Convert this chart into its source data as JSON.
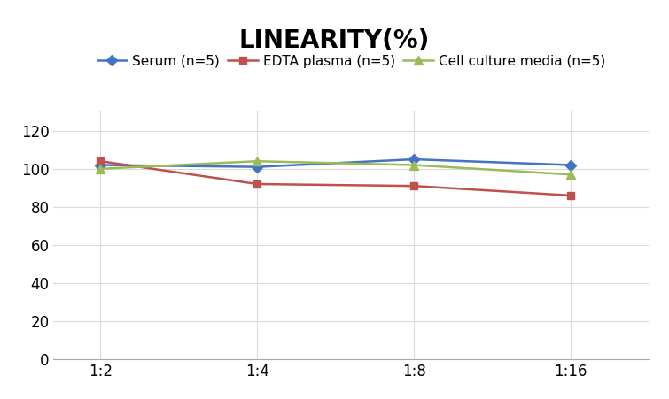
{
  "title": "LINEARITY(%)",
  "x_labels": [
    "1:2",
    "1:4",
    "1:8",
    "1:16"
  ],
  "x_positions": [
    0,
    1,
    2,
    3
  ],
  "series": [
    {
      "label": "Serum (n=5)",
      "values": [
        102,
        101,
        105,
        102
      ],
      "color": "#4472C4",
      "marker": "D",
      "markersize": 6,
      "linewidth": 1.8
    },
    {
      "label": "EDTA plasma (n=5)",
      "values": [
        104,
        92,
        91,
        86
      ],
      "color": "#C0504D",
      "marker": "s",
      "markersize": 6,
      "linewidth": 1.8
    },
    {
      "label": "Cell culture media (n=5)",
      "values": [
        100,
        104,
        102,
        97
      ],
      "color": "#9BBB59",
      "marker": "^",
      "markersize": 7,
      "linewidth": 1.8
    }
  ],
  "ylim": [
    0,
    130
  ],
  "yticks": [
    0,
    20,
    40,
    60,
    80,
    100,
    120
  ],
  "background_color": "#ffffff",
  "title_fontsize": 20,
  "legend_fontsize": 11,
  "tick_fontsize": 12,
  "xlim": [
    -0.3,
    3.5
  ]
}
